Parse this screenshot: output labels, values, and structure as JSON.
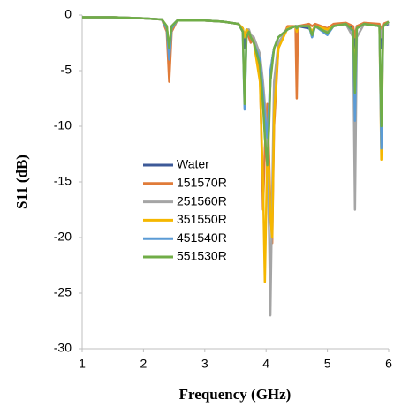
{
  "chart_data": {
    "type": "line",
    "xlabel": "Frequency (GHz)",
    "ylabel": "S11 (dB)",
    "x": [
      1,
      1.5,
      2,
      2.3,
      2.38,
      2.42,
      2.46,
      2.55,
      3,
      3.3,
      3.55,
      3.62,
      3.65,
      3.68,
      3.72,
      3.75,
      3.8,
      3.9,
      3.95,
      3.98,
      4.02,
      4.05,
      4.07,
      4.1,
      4.13,
      4.2,
      4.35,
      4.48,
      4.5,
      4.52,
      4.7,
      4.75,
      4.8,
      5.0,
      5.1,
      5.3,
      5.42,
      5.45,
      5.48,
      5.6,
      5.85,
      5.88,
      5.91,
      6
    ],
    "series": [
      {
        "name": "Water",
        "color": "#3d5a98",
        "values": [
          -0.2,
          -0.2,
          -0.3,
          -0.4,
          -1,
          -3.5,
          -1,
          -0.5,
          -0.5,
          -0.6,
          -0.8,
          -1.5,
          -3,
          -1.5,
          -1.5,
          -2,
          -2.5,
          -4,
          -7,
          -9,
          -11,
          -9,
          -6,
          -4,
          -3,
          -2,
          -1.3,
          -1,
          -1,
          -1,
          -1.2,
          -1.5,
          -1,
          -1.5,
          -1,
          -0.8,
          -1.2,
          -3,
          -1,
          -0.8,
          -1,
          -3,
          -1,
          -0.8
        ]
      },
      {
        "name": "151570R",
        "color": "#e07b39",
        "values": [
          -0.2,
          -0.2,
          -0.3,
          -0.4,
          -1.5,
          -6,
          -1.5,
          -0.5,
          -0.5,
          -0.6,
          -0.8,
          -1.2,
          -2,
          -1.5,
          -2,
          -2.5,
          -2,
          -5,
          -17.5,
          -12,
          -8,
          -13,
          -17,
          -20.5,
          -10,
          -3,
          -1,
          -1,
          -7.5,
          -1,
          -0.8,
          -1,
          -0.8,
          -1.2,
          -0.8,
          -0.7,
          -1,
          -2,
          -1,
          -0.7,
          -0.8,
          -1.5,
          -0.8,
          -0.6
        ]
      },
      {
        "name": "251560R",
        "color": "#a5a5a5",
        "values": [
          -0.2,
          -0.2,
          -0.3,
          -0.4,
          -1,
          -3.5,
          -1,
          -0.5,
          -0.5,
          -0.6,
          -0.8,
          -1.2,
          -2,
          -1.3,
          -1.3,
          -1.8,
          -2,
          -3.5,
          -6,
          -8,
          -12,
          -20,
          -27,
          -16,
          -6,
          -2.5,
          -1.2,
          -1,
          -1.5,
          -1,
          -1,
          -2,
          -1,
          -1.5,
          -1,
          -0.8,
          -2,
          -17.5,
          -2,
          -0.8,
          -1,
          -2,
          -1,
          -0.7
        ]
      },
      {
        "name": "351550R",
        "color": "#f5b700",
        "values": [
          -0.2,
          -0.2,
          -0.3,
          -0.4,
          -1,
          -3,
          -1.2,
          -0.5,
          -0.5,
          -0.6,
          -0.8,
          -1.2,
          -2,
          -1.3,
          -1.5,
          -2,
          -2.5,
          -6,
          -15,
          -24,
          -12,
          -14,
          -18,
          -20,
          -9,
          -3,
          -1.2,
          -1,
          -1.5,
          -1,
          -1,
          -1.5,
          -1,
          -1.3,
          -1,
          -0.8,
          -1.5,
          -6,
          -1.2,
          -0.8,
          -1,
          -13,
          -1,
          -0.6
        ]
      },
      {
        "name": "451540R",
        "color": "#5b9bd5",
        "values": [
          -0.2,
          -0.2,
          -0.3,
          -0.4,
          -1.2,
          -4,
          -1.2,
          -0.5,
          -0.5,
          -0.6,
          -0.8,
          -1.5,
          -8.5,
          -2,
          -1.5,
          -2,
          -2.5,
          -4,
          -7,
          -9,
          -11,
          -8,
          -5,
          -4,
          -3,
          -2,
          -1.3,
          -1,
          -1.2,
          -1,
          -1,
          -2,
          -1,
          -1.8,
          -1,
          -0.8,
          -1.5,
          -9.5,
          -1.2,
          -0.8,
          -1,
          -12,
          -1,
          -0.6
        ]
      },
      {
        "name": "551530R",
        "color": "#70ad47",
        "values": [
          -0.2,
          -0.2,
          -0.3,
          -0.4,
          -1,
          -3,
          -1,
          -0.5,
          -0.5,
          -0.6,
          -0.8,
          -1.5,
          -8,
          -2,
          -1.5,
          -2,
          -2.5,
          -4.5,
          -8,
          -11,
          -13.5,
          -10,
          -6,
          -4.5,
          -3,
          -2,
          -1.3,
          -1,
          -1.2,
          -1,
          -1,
          -1.8,
          -1,
          -1.6,
          -1,
          -0.8,
          -1.4,
          -7,
          -1.2,
          -0.8,
          -1,
          -10,
          -1,
          -0.6
        ]
      }
    ],
    "xlim": [
      1,
      6
    ],
    "xticks": [
      1,
      2,
      3,
      4,
      5,
      6
    ],
    "ylim": [
      -30,
      0
    ],
    "yticks": [
      -30,
      -25,
      -20,
      -15,
      -10,
      -5,
      0
    ],
    "grid": false,
    "legend": "center"
  }
}
